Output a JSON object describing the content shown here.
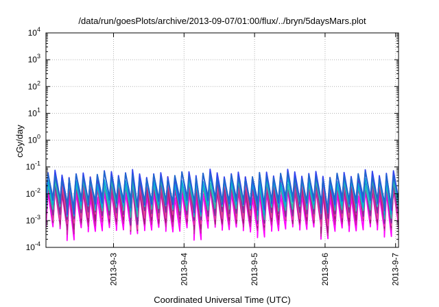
{
  "chart_data": {
    "type": "line",
    "title": "/data/run/goesPlots/archive/2013-09-07/01:00/flux/../bryn/5daysMars.plot",
    "xlabel": "Coordinated Universal Time (UTC)",
    "ylabel": "cGy/day",
    "y_scale": "log",
    "ylim": [
      0.0001,
      10000
    ],
    "y_ticks": [
      {
        "value": 0.0001,
        "base": "10",
        "exp": "-4"
      },
      {
        "value": 0.001,
        "base": "10",
        "exp": "-3"
      },
      {
        "value": 0.01,
        "base": "10",
        "exp": "-2"
      },
      {
        "value": 0.1,
        "base": "10",
        "exp": "-1"
      },
      {
        "value": 1,
        "base": "10",
        "exp": "0"
      },
      {
        "value": 10,
        "base": "10",
        "exp": "1"
      },
      {
        "value": 100,
        "base": "10",
        "exp": "2"
      },
      {
        "value": 1000,
        "base": "10",
        "exp": "3"
      },
      {
        "value": 10000,
        "base": "10",
        "exp": "4"
      }
    ],
    "xlim": [
      "2013-09-02 01:00",
      "2013-09-07 01:00"
    ],
    "x_ticks": [
      "2013-9-3",
      "2013-9-4",
      "2013-9-5",
      "2013-9-6",
      "2013-9-7"
    ],
    "grid": true,
    "legend": "none",
    "periodic_pattern": {
      "start": "2013-09-02 01:00",
      "end": "2013-09-07 01:00",
      "peaks_per_day": 10
    },
    "series": [
      {
        "color": "#ff00ff",
        "peak": 0.01,
        "trough": 0.0005
      },
      {
        "color": "#cc22aa",
        "peak": 0.016,
        "trough": 0.0008
      },
      {
        "color": "#a01e78",
        "peak": 0.02,
        "trough": 0.001
      },
      {
        "color": "#e0449a",
        "peak": 0.025,
        "trough": 0.0014
      },
      {
        "color": "#7b2fa0",
        "peak": 0.03,
        "trough": 0.002
      },
      {
        "color": "#33bbaa",
        "peak": 0.028,
        "trough": 0.003
      },
      {
        "color": "#00b0d8",
        "peak": 0.035,
        "trough": 0.004
      },
      {
        "color": "#3344ee",
        "peak": 0.055,
        "trough": 0.005
      },
      {
        "color": "#2266cc",
        "peak": 0.045,
        "trough": 0.006
      }
    ]
  }
}
